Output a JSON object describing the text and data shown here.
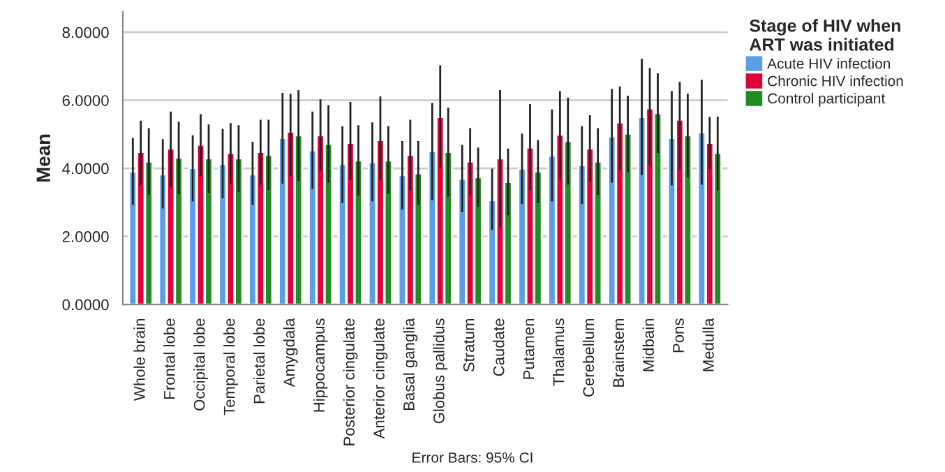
{
  "chart_data": {
    "type": "bar",
    "ylabel": "Mean",
    "legend_title": "Stage of HIV when\nART was initiated",
    "categories": [
      "Whole brain",
      "Frontal lobe",
      "Occipital lobe",
      "Temporal lobe",
      "Parietal lobe",
      "Amygdala",
      "Hippocampus",
      "Posterior cingulate",
      "Anterior cingulate",
      "Basal ganglia",
      "Globus pallidus",
      "Stratum",
      "Caudate",
      "Putamen",
      "Thalamus",
      "Cerebellum",
      "Brainstem",
      "Midbain",
      "Pons",
      "Medulla"
    ],
    "series": [
      {
        "name": "Acute HIV infection",
        "color": "#5b9ee6",
        "values": [
          3.9,
          3.82,
          4.01,
          4.12,
          3.82,
          4.89,
          4.53,
          4.12,
          4.18,
          3.8,
          4.5,
          3.69,
          3.06,
          3.99,
          4.37,
          4.09,
          4.94,
          5.51,
          4.89,
          5.05
        ],
        "errors": [
          [
            2.93,
            4.89
          ],
          [
            2.82,
            4.86
          ],
          [
            3.03,
            4.97
          ],
          [
            3.12,
            5.16
          ],
          [
            2.93,
            4.78
          ],
          [
            3.55,
            6.22
          ],
          [
            3.39,
            5.67
          ],
          [
            2.98,
            5.24
          ],
          [
            3.03,
            5.35
          ],
          [
            2.79,
            4.8
          ],
          [
            3.06,
            5.92
          ],
          [
            2.71,
            4.69
          ],
          [
            2.19,
            3.99
          ],
          [
            2.95,
            5.02
          ],
          [
            3.03,
            5.73
          ],
          [
            2.95,
            5.24
          ],
          [
            3.58,
            6.33
          ],
          [
            3.8,
            7.22
          ],
          [
            3.5,
            6.27
          ],
          [
            3.52,
            6.6
          ]
        ]
      },
      {
        "name": "Chronic HIV infection",
        "color": "#e0003a",
        "values": [
          4.48,
          4.58,
          4.69,
          4.45,
          4.48,
          5.07,
          4.97,
          4.75,
          4.83,
          4.39,
          5.51,
          4.2,
          4.29,
          4.61,
          4.99,
          4.58,
          5.35,
          5.76,
          5.43,
          4.75
        ],
        "errors": [
          [
            3.52,
            5.4
          ],
          [
            3.44,
            5.67
          ],
          [
            3.77,
            5.59
          ],
          [
            3.55,
            5.33
          ],
          [
            3.52,
            5.43
          ],
          [
            3.77,
            6.19
          ],
          [
            3.93,
            6.03
          ],
          [
            3.66,
            5.95
          ],
          [
            3.66,
            6.11
          ],
          [
            3.36,
            5.43
          ],
          [
            4.01,
            7.03
          ],
          [
            3.22,
            5.18
          ],
          [
            2.27,
            6.3
          ],
          [
            3.36,
            5.89
          ],
          [
            3.66,
            6.27
          ],
          [
            3.6,
            5.56
          ],
          [
            3.96,
            6.41
          ],
          [
            4.09,
            6.95
          ],
          [
            3.96,
            6.54
          ],
          [
            3.98,
            5.51
          ]
        ]
      },
      {
        "name": "Control participant",
        "color": "#228b22",
        "values": [
          4.2,
          4.31,
          4.29,
          4.29,
          4.39,
          4.97,
          4.72,
          4.23,
          4.23,
          3.85,
          4.48,
          3.74,
          3.6,
          3.9,
          4.8,
          4.2,
          5.02,
          5.62,
          4.97,
          4.45
        ],
        "errors": [
          [
            3.22,
            5.18
          ],
          [
            3.25,
            5.37
          ],
          [
            3.28,
            5.29
          ],
          [
            3.31,
            5.27
          ],
          [
            3.36,
            5.43
          ],
          [
            3.63,
            6.3
          ],
          [
            3.58,
            5.86
          ],
          [
            3.2,
            5.27
          ],
          [
            3.25,
            5.24
          ],
          [
            2.93,
            4.8
          ],
          [
            3.17,
            5.78
          ],
          [
            2.87,
            4.61
          ],
          [
            2.62,
            4.58
          ],
          [
            2.98,
            4.83
          ],
          [
            3.52,
            6.08
          ],
          [
            3.22,
            5.18
          ],
          [
            3.88,
            6.13
          ],
          [
            4.45,
            6.79
          ],
          [
            3.74,
            6.19
          ],
          [
            3.35,
            5.52
          ]
        ]
      }
    ],
    "ylim": [
      0,
      8.6
    ],
    "yticks": [
      {
        "value": 0,
        "label": "0.0000"
      },
      {
        "value": 2,
        "label": "2.0000"
      },
      {
        "value": 4,
        "label": "4.0000"
      },
      {
        "value": 6,
        "label": "6.0000"
      },
      {
        "value": 8,
        "label": "8.0000"
      }
    ],
    "grid": "y",
    "legend": "right",
    "annotations": [
      "Error Bars: 95% CI"
    ]
  }
}
